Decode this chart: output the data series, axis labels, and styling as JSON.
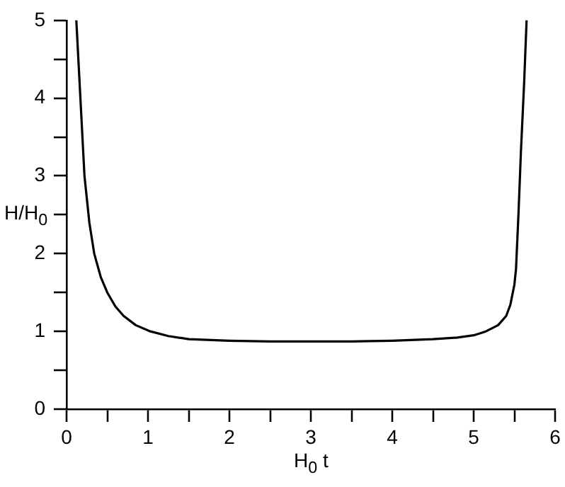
{
  "chart_data": {
    "type": "line",
    "xlabel": "H$_{0}$ t",
    "ylabel": "H/H$_{0}$",
    "x": [
      0.12,
      0.15,
      0.17,
      0.22,
      0.28,
      0.34,
      0.42,
      0.5,
      0.6,
      0.7,
      0.85,
      1.03,
      1.25,
      1.5,
      2,
      2.5,
      3,
      3.5,
      4,
      4.5,
      4.8,
      5,
      5.15,
      5.3,
      5.4,
      5.45,
      5.5,
      5.52,
      5.55,
      5.58,
      5.62,
      5.65
    ],
    "series": [
      {
        "color": "#000000",
        "values": [
          5,
          4.4,
          4,
          3,
          2.4,
          2,
          1.7,
          1.5,
          1.32,
          1.2,
          1.08,
          1,
          0.94,
          0.9,
          0.88,
          0.87,
          0.87,
          0.87,
          0.88,
          0.9,
          0.92,
          0.95,
          1,
          1.08,
          1.2,
          1.34,
          1.6,
          1.8,
          2.5,
          3.3,
          4.2,
          5
        ]
      }
    ],
    "xlim": [
      0,
      6
    ],
    "ylim": [
      0,
      5
    ],
    "xticks": [
      0,
      {
        "value": 0.5,
        "label": null
      },
      1,
      {
        "value": 1.5,
        "label": null
      },
      2,
      {
        "value": 2.5,
        "label": null
      },
      3,
      {
        "value": 3.5,
        "label": null
      },
      4,
      {
        "value": 4.5,
        "label": null
      },
      5,
      {
        "value": 5.5,
        "label": null
      },
      6
    ],
    "yticks": [
      0,
      {
        "value": 0.5,
        "label": null
      },
      1,
      {
        "value": 1.5,
        "label": null
      },
      2,
      {
        "value": 2.5,
        "label": null
      },
      3,
      {
        "value": 3.5,
        "label": null
      },
      4,
      {
        "value": 4.5,
        "label": null
      },
      5
    ],
    "grid": false,
    "legend": false,
    "marker": "none",
    "line_style": "solid"
  }
}
